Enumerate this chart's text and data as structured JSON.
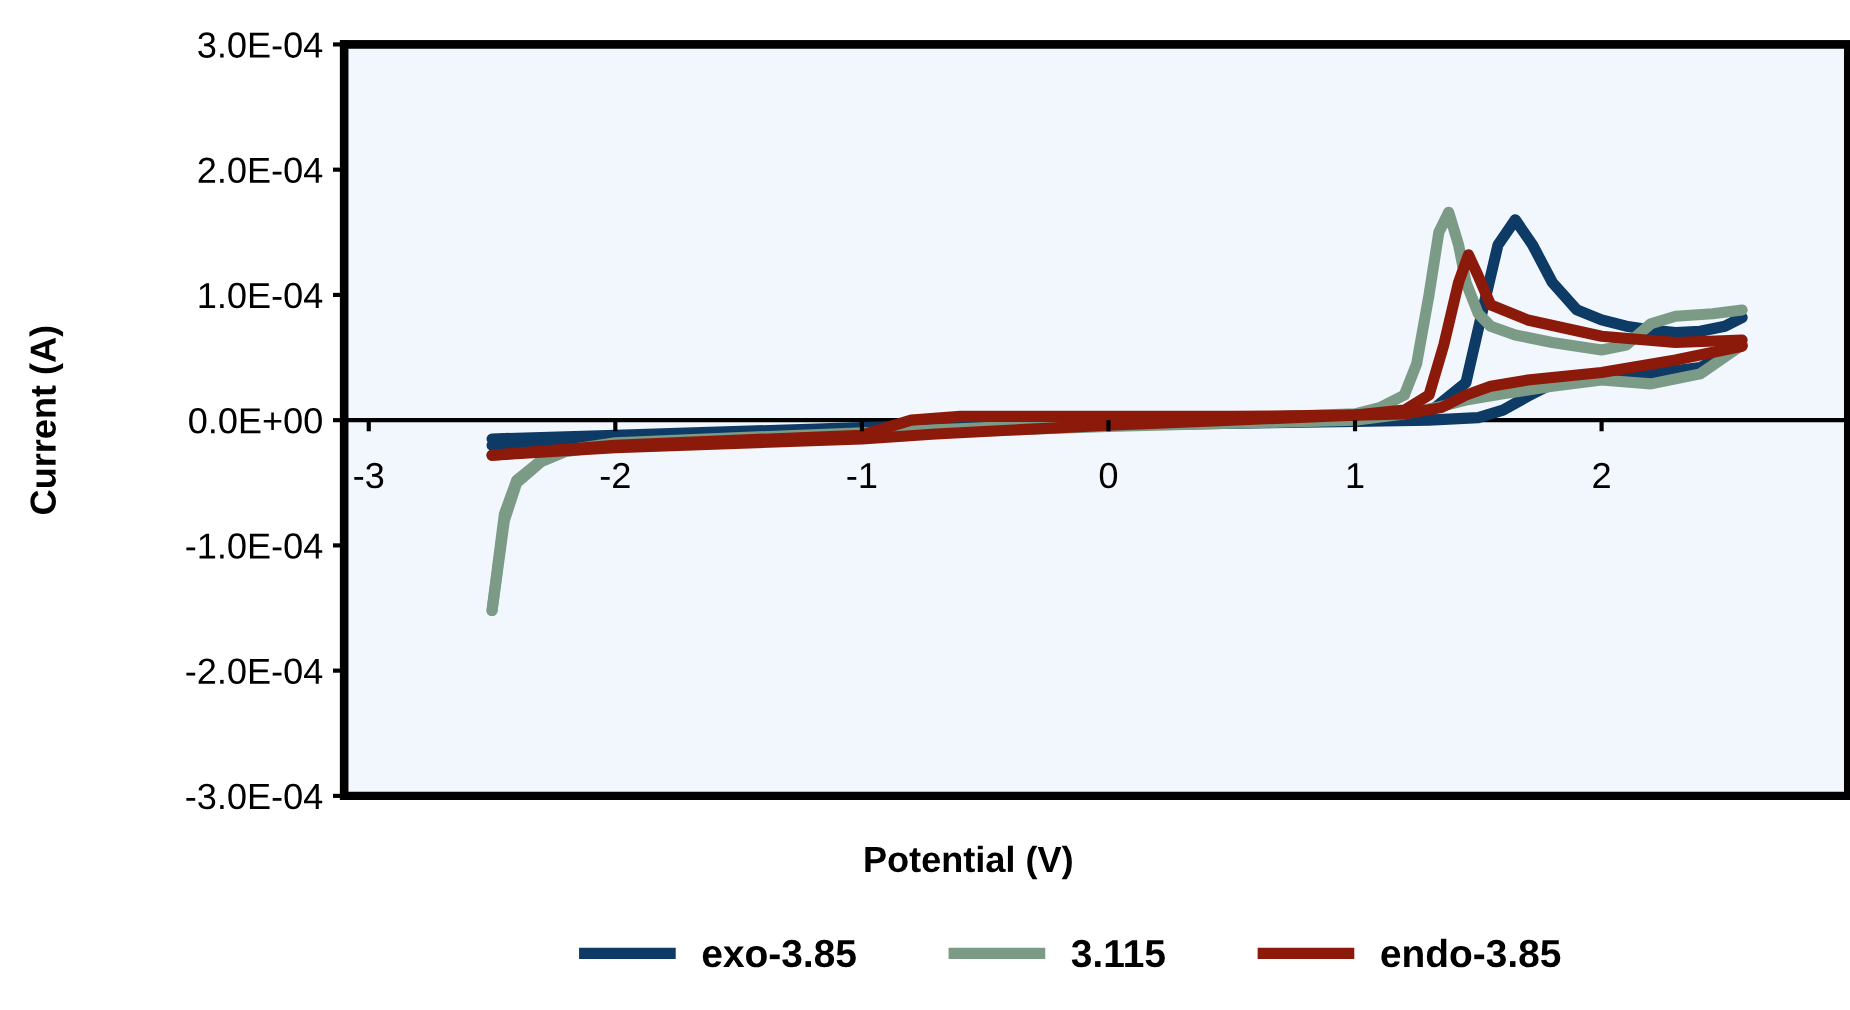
{
  "chart_data": {
    "type": "line",
    "xlabel": "Potential (V)",
    "ylabel": "Current (A)",
    "xlim": [
      -3.1,
      3
    ],
    "xticks": [
      -3,
      -2,
      -1,
      0,
      1,
      2
    ],
    "ylim": [
      -0.0003,
      0.0003
    ],
    "yticks": [
      {
        "value": 0.0003,
        "label": "3.0E-04"
      },
      {
        "value": 0.0002,
        "label": "2.0E-04"
      },
      {
        "value": 0.0001,
        "label": "1.0E-04"
      },
      {
        "value": 0,
        "label": "0.0E+00"
      },
      {
        "value": -0.0001,
        "label": "-1.0E-04"
      },
      {
        "value": -0.0002,
        "label": "-2.0E-04"
      },
      {
        "value": -0.0003,
        "label": "-3.0E-04"
      }
    ],
    "grid": false,
    "legend": "bottom",
    "marker": "none",
    "line_style": "solid",
    "series": [
      {
        "name": "exo-3.85",
        "color": "#0e3a66",
        "x": [
          -2.5,
          -2.0,
          -1.0,
          0,
          1.0,
          1.3,
          1.45,
          1.52,
          1.58,
          1.65,
          1.72,
          1.8,
          1.9,
          2.0,
          2.1,
          2.2,
          2.3,
          2.4,
          2.5,
          2.57
        ],
        "values": [
          -1.5e-05,
          -1.2e-05,
          -6e-06,
          0,
          4e-06,
          6e-06,
          3e-05,
          9e-05,
          0.00014,
          0.00016,
          0.00014,
          0.00011,
          8.8e-05,
          8e-05,
          7.5e-05,
          7.2e-05,
          7e-05,
          7.1e-05,
          7.5e-05,
          8.2e-05
        ]
      },
      {
        "color": "#0e3a66",
        "x": [
          -2.5,
          -2.0,
          -1.0,
          0,
          1.0,
          1.3,
          1.5,
          1.6,
          1.7,
          1.8,
          2.0,
          2.2,
          2.4,
          2.57
        ],
        "values": [
          -2e-05,
          -1.7e-05,
          -1e-05,
          -4e-06,
          -1e-06,
          0,
          2e-06,
          8e-06,
          1.9e-05,
          2.9e-05,
          3.3e-05,
          3.7e-05,
          4.2e-05,
          6e-05
        ]
      },
      {
        "name": "3.115",
        "color": "#7b9b86",
        "x": [
          -2.5,
          -2.45,
          -2.4,
          -2.3,
          -2.2,
          -2.0,
          -1.0,
          0,
          1.0,
          1.1,
          1.2,
          1.25,
          1.3,
          1.34,
          1.38,
          1.42,
          1.45,
          1.5,
          1.55,
          1.65,
          1.8,
          2.0,
          2.1,
          2.2,
          2.3,
          2.45,
          2.57
        ],
        "values": [
          -0.000152,
          -7.5e-05,
          -4.8e-05,
          -3.2e-05,
          -2.4e-05,
          -1.8e-05,
          -1e-05,
          -2e-06,
          5e-06,
          1e-05,
          2e-05,
          4.5e-05,
          0.0001,
          0.00015,
          0.000166,
          0.00014,
          0.00011,
          8.5e-05,
          7.5e-05,
          6.8e-05,
          6.2e-05,
          5.6e-05,
          6e-05,
          7.7e-05,
          8.3e-05,
          8.5e-05,
          8.8e-05
        ]
      },
      {
        "color": "#7b9b86",
        "x": [
          -2.5,
          -2.45,
          -2.4,
          -2.3,
          -2.2,
          -2.0,
          -1.0,
          0,
          1.0,
          1.2,
          1.35,
          1.45,
          1.6,
          1.8,
          2.0,
          2.2,
          2.4,
          2.57
        ],
        "values": [
          -0.000152,
          -8e-05,
          -5e-05,
          -3.3e-05,
          -2.5e-05,
          -2e-05,
          -1.2e-05,
          -5e-06,
          0,
          5e-06,
          1.1e-05,
          1.6e-05,
          2.1e-05,
          2.7e-05,
          3.2e-05,
          2.9e-05,
          3.7e-05,
          6e-05
        ]
      },
      {
        "name": "endo-3.85",
        "color": "#8c1a0b",
        "x": [
          -2.5,
          -2.0,
          -1.0,
          -0.7,
          0,
          0.5,
          1.0,
          1.2,
          1.3,
          1.36,
          1.42,
          1.46,
          1.5,
          1.55,
          1.7,
          2.0,
          2.3,
          2.57
        ],
        "values": [
          -2.8e-05,
          -2.2e-05,
          -1.5e-05,
          -1.1e-05,
          -4e-06,
          0,
          4e-06,
          8e-06,
          2e-05,
          6e-05,
          0.00011,
          0.000132,
          0.000115,
          9.2e-05,
          8e-05,
          6.7e-05,
          6.2e-05,
          6.4e-05
        ]
      },
      {
        "color": "#8c1a0b",
        "x": [
          -2.5,
          -2.0,
          -1.0,
          -0.8,
          -0.6,
          0,
          0.5,
          1.0,
          1.2,
          1.35,
          1.45,
          1.55,
          1.7,
          2.0,
          2.3,
          2.57
        ],
        "values": [
          -2.8e-05,
          -2e-05,
          -1.2e-05,
          0,
          3e-06,
          3e-06,
          3e-06,
          4e-06,
          5e-06,
          1e-05,
          2e-05,
          2.7e-05,
          3.2e-05,
          3.8e-05,
          4.8e-05,
          5.9e-05
        ]
      }
    ]
  }
}
